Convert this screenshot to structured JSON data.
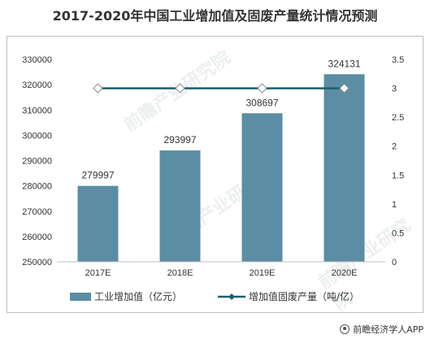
{
  "title": "2017-2020年中国工业增加值及固废产量统计情况预测",
  "credit": "前瞻经济学人APP",
  "watermark": "前瞻产业研究院",
  "colors": {
    "bar": "#5b8ea4",
    "line": "#1d5f6e",
    "marker_fill": "#ffffff",
    "axis": "#bfbfbf",
    "text": "#333333"
  },
  "chart_data": {
    "type": "bar",
    "categories": [
      "2017E",
      "2018E",
      "2019E",
      "2020E"
    ],
    "series": [
      {
        "name": "工业增加值（亿元）",
        "type": "bar",
        "axis": "left",
        "values": [
          279997,
          293997,
          308697,
          324131
        ]
      },
      {
        "name": "增加值固废产量（吨/亿）",
        "type": "line",
        "axis": "right",
        "values": [
          3,
          3,
          3,
          3
        ]
      }
    ],
    "y_left": {
      "min": 250000,
      "max": 330000,
      "ticks": [
        250000,
        260000,
        270000,
        280000,
        290000,
        300000,
        310000,
        320000,
        330000
      ]
    },
    "y_right": {
      "min": 0,
      "max": 3.5,
      "ticks": [
        "0",
        "0.5",
        "1",
        "1.5",
        "2",
        "2.5",
        "3",
        "3.5"
      ]
    },
    "data_labels": [
      "279997",
      "293997",
      "308697",
      "324131"
    ],
    "grid": false,
    "legend": "bottom"
  }
}
